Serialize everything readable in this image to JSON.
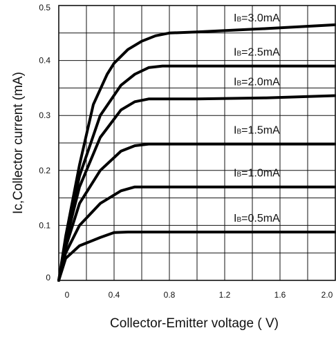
{
  "chart_data": {
    "type": "line",
    "title": "",
    "xlabel": "Collector-Emitter voltage ( V)",
    "ylabel": "Ic,Collector current  (mA)",
    "xlim": [
      0,
      2.0
    ],
    "ylim": [
      0,
      0.5
    ],
    "x_ticks": [
      "0",
      "0.4",
      "0.8",
      "1.2",
      "1.6",
      "2.0"
    ],
    "y_ticks": [
      "0",
      "0.1",
      "0.2",
      "0.3",
      "0.4",
      "0.5"
    ],
    "grid": true,
    "line_color": "#000000",
    "series": [
      {
        "name": "IB=0.5mA",
        "label_prefix": "I",
        "label_sub": "B",
        "label_rest": "=0.5mA",
        "x": [
          0,
          0.05,
          0.15,
          0.3,
          0.4,
          0.5,
          1.0,
          1.5,
          2.0
        ],
        "y": [
          0,
          0.04,
          0.063,
          0.078,
          0.087,
          0.088,
          0.088,
          0.088,
          0.088
        ]
      },
      {
        "name": "IB=1.0mA",
        "label_prefix": "I",
        "label_sub": "B",
        "label_rest": "=1.0mA",
        "x": [
          0,
          0.05,
          0.15,
          0.3,
          0.45,
          0.55,
          0.7,
          1.0,
          1.5,
          2.0
        ],
        "y": [
          0,
          0.05,
          0.1,
          0.14,
          0.163,
          0.17,
          0.17,
          0.17,
          0.17,
          0.17
        ]
      },
      {
        "name": "IB=1.5mA",
        "label_prefix": "I",
        "label_sub": "B",
        "label_rest": "=1.5mA",
        "x": [
          0,
          0.05,
          0.15,
          0.3,
          0.45,
          0.55,
          0.65,
          1.0,
          1.5,
          2.0
        ],
        "y": [
          0,
          0.06,
          0.14,
          0.2,
          0.235,
          0.245,
          0.248,
          0.248,
          0.248,
          0.248
        ]
      },
      {
        "name": "IB=2.0mA",
        "label_prefix": "I",
        "label_sub": "B",
        "label_rest": "=2.0mA",
        "x": [
          0,
          0.05,
          0.15,
          0.3,
          0.45,
          0.55,
          0.65,
          1.0,
          1.5,
          2.0
        ],
        "y": [
          0,
          0.07,
          0.17,
          0.26,
          0.31,
          0.325,
          0.33,
          0.33,
          0.332,
          0.336
        ]
      },
      {
        "name": "IB=2.5mA",
        "label_prefix": "I",
        "label_sub": "B",
        "label_rest": "=2.5mA",
        "x": [
          0,
          0.05,
          0.15,
          0.3,
          0.45,
          0.55,
          0.65,
          0.75,
          1.0,
          1.5,
          2.0
        ],
        "y": [
          0,
          0.075,
          0.19,
          0.3,
          0.355,
          0.375,
          0.387,
          0.39,
          0.39,
          0.39,
          0.39
        ]
      },
      {
        "name": "IB=3.0mA",
        "label_prefix": "I",
        "label_sub": "B",
        "label_rest": "=3.0mA",
        "x": [
          0,
          0.05,
          0.15,
          0.25,
          0.35,
          0.4,
          0.5,
          0.6,
          0.7,
          0.8,
          1.0,
          1.5,
          2.0
        ],
        "y": [
          0,
          0.08,
          0.21,
          0.32,
          0.375,
          0.395,
          0.42,
          0.435,
          0.445,
          0.45,
          0.452,
          0.458,
          0.465
        ]
      }
    ]
  }
}
